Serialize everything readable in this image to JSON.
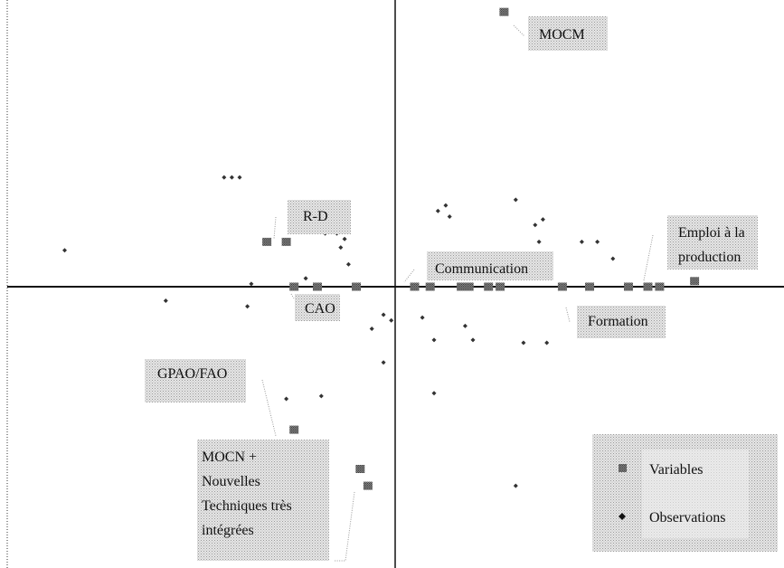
{
  "chart_data": {
    "type": "scatter",
    "title": "",
    "xlabel": "",
    "ylabel": "",
    "xlim": [
      -1,
      1
    ],
    "ylim": [
      -1,
      1
    ],
    "grid": false,
    "legend_position": "bottom-right",
    "colors": {
      "axis": "#111111",
      "variable": "#555555",
      "observation": "#777777",
      "label_fill": "#e3e3e3"
    },
    "legend": [
      {
        "key": "variables",
        "label": "Variables",
        "marker": "square"
      },
      {
        "key": "observations",
        "label": "Observations",
        "marker": "diamond"
      }
    ],
    "series": [
      {
        "key": "variables",
        "marker": "square",
        "points": [
          {
            "x": -0.33,
            "y": 0.16,
            "label": "R-D"
          },
          {
            "x": -0.28,
            "y": 0.16
          },
          {
            "x": -0.26,
            "y": 0.0,
            "label": "CAO"
          },
          {
            "x": -0.2,
            "y": 0.0
          },
          {
            "x": -0.1,
            "y": 0.0
          },
          {
            "x": 0.05,
            "y": 0.0,
            "label": "Communication"
          },
          {
            "x": 0.09,
            "y": 0.0
          },
          {
            "x": 0.17,
            "y": 0.0
          },
          {
            "x": 0.19,
            "y": 0.0
          },
          {
            "x": 0.24,
            "y": 0.0
          },
          {
            "x": 0.27,
            "y": 0.0
          },
          {
            "x": 0.43,
            "y": 0.0,
            "label": "Formation"
          },
          {
            "x": 0.5,
            "y": 0.0
          },
          {
            "x": 0.6,
            "y": 0.0
          },
          {
            "x": 0.65,
            "y": 0.0
          },
          {
            "x": 0.68,
            "y": 0.0,
            "label": "Emploi à la production"
          },
          {
            "x": 0.77,
            "y": 0.02
          },
          {
            "x": 0.28,
            "y": 0.98,
            "label": "MOCM"
          },
          {
            "x": -0.26,
            "y": -0.51,
            "label": "GPAO/FAO"
          },
          {
            "x": -0.09,
            "y": -0.65
          },
          {
            "x": -0.07,
            "y": -0.71,
            "label": "MOCN + Nouvelles Techniques très intégrées"
          }
        ]
      },
      {
        "key": "observations",
        "marker": "diamond",
        "points": [
          {
            "x": -0.85,
            "y": 0.13
          },
          {
            "x": -0.44,
            "y": 0.39
          },
          {
            "x": -0.42,
            "y": 0.39
          },
          {
            "x": -0.4,
            "y": 0.39
          },
          {
            "x": -0.18,
            "y": 0.19
          },
          {
            "x": -0.15,
            "y": 0.19
          },
          {
            "x": -0.14,
            "y": 0.14
          },
          {
            "x": -0.13,
            "y": 0.17
          },
          {
            "x": -0.12,
            "y": 0.08
          },
          {
            "x": -0.23,
            "y": 0.03
          },
          {
            "x": -0.37,
            "y": 0.01
          },
          {
            "x": -0.59,
            "y": -0.05
          },
          {
            "x": -0.38,
            "y": -0.07
          },
          {
            "x": -0.01,
            "y": -0.12
          },
          {
            "x": -0.03,
            "y": -0.1
          },
          {
            "x": -0.06,
            "y": -0.15
          },
          {
            "x": -0.03,
            "y": -0.27
          },
          {
            "x": 0.07,
            "y": -0.11
          },
          {
            "x": 0.11,
            "y": 0.27
          },
          {
            "x": 0.13,
            "y": 0.29
          },
          {
            "x": 0.14,
            "y": 0.25
          },
          {
            "x": 0.31,
            "y": 0.31
          },
          {
            "x": 0.36,
            "y": 0.22
          },
          {
            "x": 0.38,
            "y": 0.24
          },
          {
            "x": 0.37,
            "y": 0.16
          },
          {
            "x": 0.48,
            "y": 0.16
          },
          {
            "x": 0.52,
            "y": 0.16
          },
          {
            "x": 0.56,
            "y": 0.1
          },
          {
            "x": 0.18,
            "y": -0.14
          },
          {
            "x": 0.1,
            "y": -0.19
          },
          {
            "x": 0.2,
            "y": -0.19
          },
          {
            "x": 0.33,
            "y": -0.2
          },
          {
            "x": 0.39,
            "y": -0.2
          },
          {
            "x": -0.28,
            "y": -0.4
          },
          {
            "x": -0.19,
            "y": -0.39
          },
          {
            "x": 0.1,
            "y": -0.38
          },
          {
            "x": 0.31,
            "y": -0.71
          }
        ]
      }
    ]
  }
}
